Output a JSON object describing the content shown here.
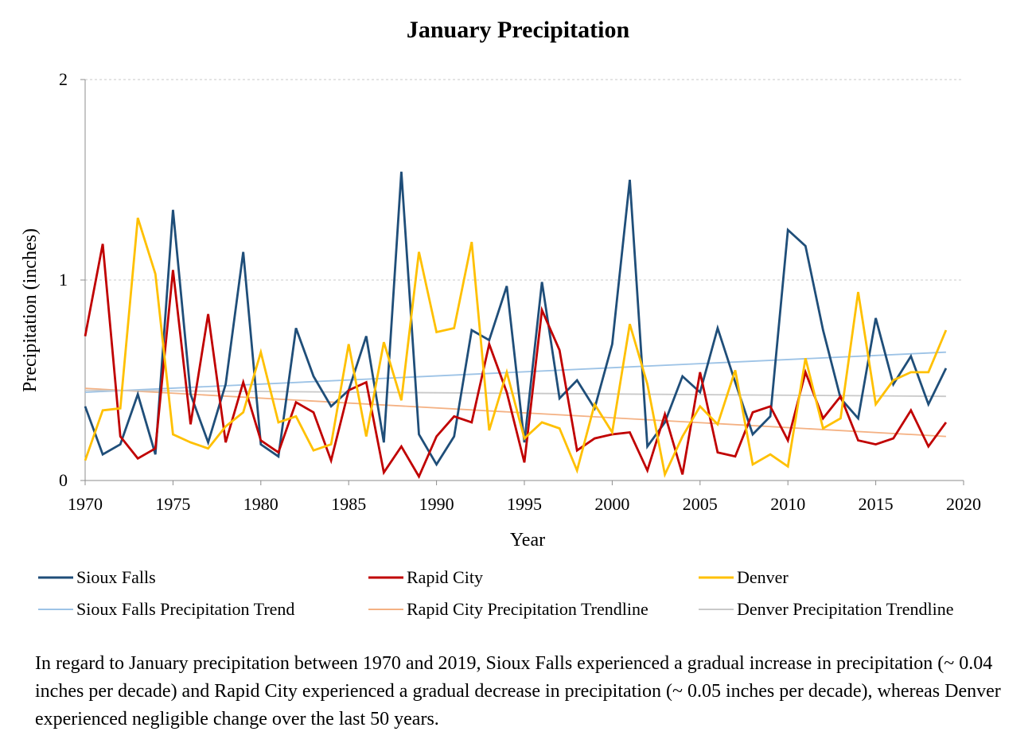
{
  "chart_data": {
    "type": "line",
    "title": "January Precipitation",
    "xlabel": "Year",
    "ylabel": "Precipitation (inches)",
    "xlim": [
      1970,
      2020
    ],
    "ylim": [
      0,
      2
    ],
    "x_ticks": [
      "1970",
      "1975",
      "1980",
      "1985",
      "1990",
      "1995",
      "2000",
      "2005",
      "2010",
      "2015",
      "2020"
    ],
    "y_ticks": [
      "0",
      "1",
      "2"
    ],
    "grid": "horizontal dashed",
    "legend_position": "bottom",
    "x": [
      1970,
      1971,
      1972,
      1973,
      1974,
      1975,
      1976,
      1977,
      1978,
      1979,
      1980,
      1981,
      1982,
      1983,
      1984,
      1985,
      1986,
      1987,
      1988,
      1989,
      1990,
      1991,
      1992,
      1993,
      1994,
      1995,
      1996,
      1997,
      1998,
      1999,
      2000,
      2001,
      2002,
      2003,
      2004,
      2005,
      2006,
      2007,
      2008,
      2009,
      2010,
      2011,
      2012,
      2013,
      2014,
      2015,
      2016,
      2017,
      2018,
      2019
    ],
    "series": [
      {
        "name": "Sioux Falls",
        "color": "#1f4e79",
        "values": [
          0.37,
          0.13,
          0.18,
          0.43,
          0.13,
          1.35,
          0.43,
          0.19,
          0.48,
          1.14,
          0.18,
          0.12,
          0.76,
          0.52,
          0.37,
          0.45,
          0.72,
          0.19,
          1.54,
          0.23,
          0.08,
          0.22,
          0.75,
          0.7,
          0.97,
          0.19,
          0.99,
          0.41,
          0.5,
          0.36,
          0.68,
          1.5,
          0.17,
          0.29,
          0.52,
          0.44,
          0.76,
          0.49,
          0.23,
          0.32,
          1.25,
          1.17,
          0.75,
          0.41,
          0.31,
          0.81,
          0.48,
          0.62,
          0.38,
          0.56
        ]
      },
      {
        "name": "Rapid City",
        "color": "#c00000",
        "values": [
          0.72,
          1.18,
          0.22,
          0.11,
          0.16,
          1.05,
          0.28,
          0.83,
          0.19,
          0.49,
          0.2,
          0.14,
          0.39,
          0.34,
          0.1,
          0.45,
          0.49,
          0.04,
          0.17,
          0.02,
          0.22,
          0.32,
          0.29,
          0.68,
          0.44,
          0.09,
          0.85,
          0.65,
          0.15,
          0.21,
          0.23,
          0.24,
          0.05,
          0.33,
          0.03,
          0.54,
          0.14,
          0.12,
          0.34,
          0.37,
          0.2,
          0.54,
          0.31,
          0.42,
          0.2,
          0.18,
          0.21,
          0.35,
          0.17,
          0.29
        ]
      },
      {
        "name": "Denver",
        "color": "#ffc000",
        "values": [
          0.1,
          0.35,
          0.36,
          1.31,
          1.03,
          0.23,
          0.19,
          0.16,
          0.27,
          0.34,
          0.64,
          0.29,
          0.32,
          0.15,
          0.18,
          0.68,
          0.22,
          0.69,
          0.4,
          1.14,
          0.74,
          0.76,
          1.19,
          0.25,
          0.54,
          0.21,
          0.29,
          0.26,
          0.05,
          0.38,
          0.24,
          0.78,
          0.48,
          0.03,
          0.22,
          0.37,
          0.28,
          0.55,
          0.08,
          0.13,
          0.07,
          0.61,
          0.26,
          0.31,
          0.94,
          0.38,
          0.5,
          0.54,
          0.54,
          0.75
        ]
      },
      {
        "name": "Sioux Falls Precipitation Trend",
        "color": "#9dc3e6",
        "kind": "trend",
        "x": [
          1970,
          2019
        ],
        "values": [
          0.44,
          0.64
        ]
      },
      {
        "name": "Rapid City Precipitation Trendline",
        "color": "#f4b183",
        "kind": "trend",
        "x": [
          1970,
          2019
        ],
        "values": [
          0.46,
          0.22
        ]
      },
      {
        "name": "Denver Precipitation Trendline",
        "color": "#c9c9c9",
        "kind": "trend",
        "x": [
          1970,
          2019
        ],
        "values": [
          0.45,
          0.42
        ]
      }
    ]
  },
  "caption": "In regard to January precipitation between 1970 and 2019, Sioux Falls experienced a gradual increase in precipitation (~ 0.04 inches per decade) and Rapid City experienced a gradual decrease in precipitation (~ 0.05 inches per decade), whereas Denver experienced negligible change over the last 50 years."
}
